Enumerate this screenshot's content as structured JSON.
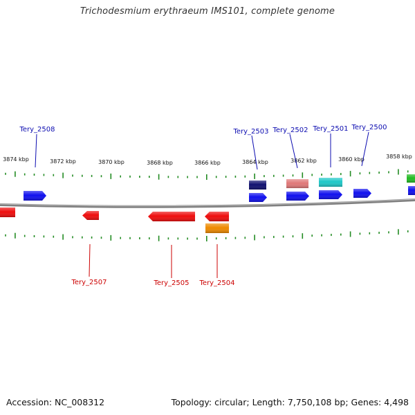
{
  "header": {
    "title": "Trichodesmium erythraeum IMS101, complete genome"
  },
  "footer": {
    "accession": "Accession: NC_008312",
    "summary": "Topology: circular; Length: 7,750,108 bp; Genes: 4,498"
  },
  "colors": {
    "plus_strand_label": "#0b0bb0",
    "minus_strand_label": "#cc0000",
    "backbone": "#808080",
    "tick": "#228b22",
    "gene_blue": "#1010ee",
    "gene_red": "#ee0d0d",
    "gene_navy": "#101070",
    "gene_salmon": "#e07878",
    "gene_cyan": "#20c8c8",
    "gene_orange": "#ee8a00",
    "gene_green": "#22bb22"
  },
  "map": {
    "kbp_labels": [
      "3874 kbp",
      "3872 kbp",
      "3870 kbp",
      "3868 kbp",
      "3866 kbp",
      "3864 kbp",
      "3862 kbp",
      "3860 kbp",
      "3858 kbp"
    ],
    "gene_labels": [
      {
        "name": "Tery_2508",
        "strand": "+"
      },
      {
        "name": "Tery_2503",
        "strand": "+"
      },
      {
        "name": "Tery_2502",
        "strand": "+"
      },
      {
        "name": "Tery_2501",
        "strand": "+"
      },
      {
        "name": "Tery_2500",
        "strand": "+"
      },
      {
        "name": "Tery_2507",
        "strand": "-"
      },
      {
        "name": "Tery_2505",
        "strand": "-"
      },
      {
        "name": "Tery_2504",
        "strand": "-"
      }
    ],
    "features": [
      {
        "strand": "+",
        "color": "blue",
        "track": "cds"
      },
      {
        "strand": "+",
        "color": "blue",
        "track": "cds"
      },
      {
        "strand": "+",
        "color": "blue",
        "track": "cds"
      },
      {
        "strand": "+",
        "color": "blue",
        "track": "cds"
      },
      {
        "strand": "+",
        "color": "blue",
        "track": "cds"
      },
      {
        "strand": "+",
        "color": "blue",
        "track": "cds"
      },
      {
        "strand": "+",
        "color": "navy",
        "track": "outer"
      },
      {
        "strand": "+",
        "color": "salmon",
        "track": "outer"
      },
      {
        "strand": "+",
        "color": "cyan",
        "track": "outer"
      },
      {
        "strand": "+",
        "color": "green",
        "track": "outer"
      },
      {
        "strand": "-",
        "color": "red",
        "track": "cds"
      },
      {
        "strand": "-",
        "color": "red",
        "track": "cds"
      },
      {
        "strand": "-",
        "color": "red",
        "track": "cds"
      },
      {
        "strand": "-",
        "color": "red",
        "track": "cds"
      },
      {
        "strand": "-",
        "color": "orange",
        "track": "outer"
      }
    ]
  }
}
